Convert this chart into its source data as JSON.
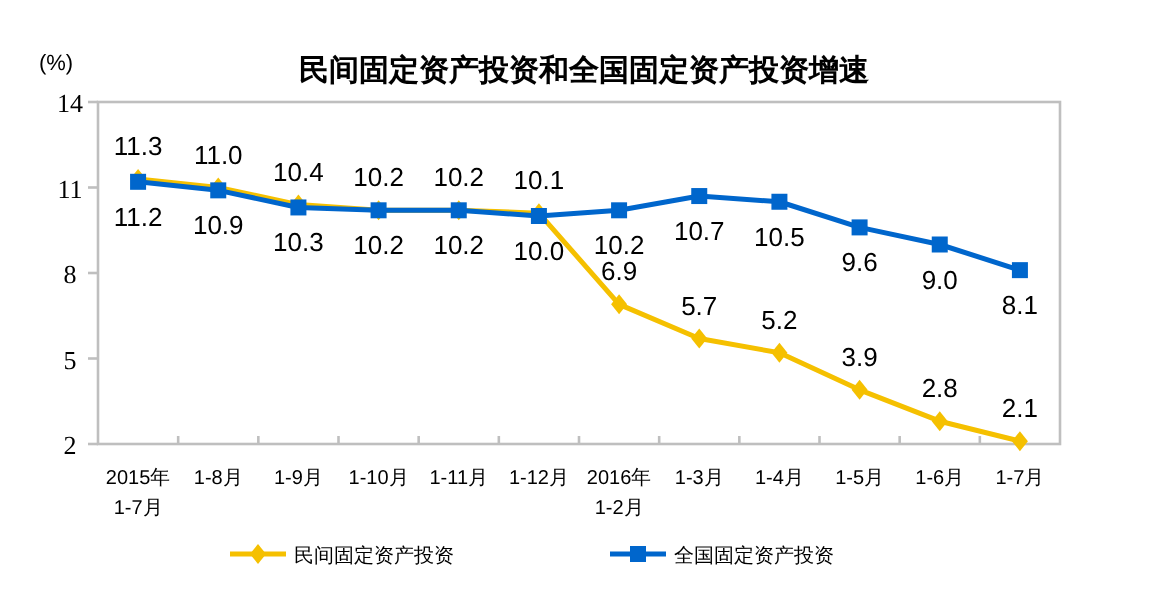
{
  "chart_data": {
    "type": "line",
    "title": "民间固定资产投资和全国固定资产投资增速",
    "ylabel": "(%)",
    "categories": [
      "2015年\n1-7月",
      "1-8月",
      "1-9月",
      "1-10月",
      "1-11月",
      "1-12月",
      "2016年\n1-2月",
      "1-3月",
      "1-4月",
      "1-5月",
      "1-6月",
      "1-7月"
    ],
    "series": [
      {
        "name": "民间固定资产投资",
        "color": "#f5c000",
        "marker": "diamond",
        "values": [
          11.3,
          11.0,
          10.4,
          10.2,
          10.2,
          10.1,
          6.9,
          5.7,
          5.2,
          3.9,
          2.8,
          2.1
        ],
        "value_labels": [
          "11.3",
          "11.0",
          "10.4",
          "10.2",
          "10.2",
          "10.1",
          "6.9",
          "5.7",
          "5.2",
          "3.9",
          "2.8",
          "2.1"
        ]
      },
      {
        "name": "全国固定资产投资",
        "color": "#0066cc",
        "marker": "square",
        "values": [
          11.2,
          10.9,
          10.3,
          10.2,
          10.2,
          10.0,
          10.2,
          10.7,
          10.5,
          9.6,
          9.0,
          8.1
        ],
        "value_labels": [
          "11.2",
          "10.9",
          "10.3",
          "10.2",
          "10.2",
          "10.0",
          "10.2",
          "10.7",
          "10.5",
          "9.6",
          "9.0",
          "8.1"
        ]
      }
    ],
    "ylim": [
      2,
      14
    ],
    "yticks": [
      2,
      5,
      8,
      11,
      14
    ],
    "grid": false,
    "legend": "bottom"
  }
}
